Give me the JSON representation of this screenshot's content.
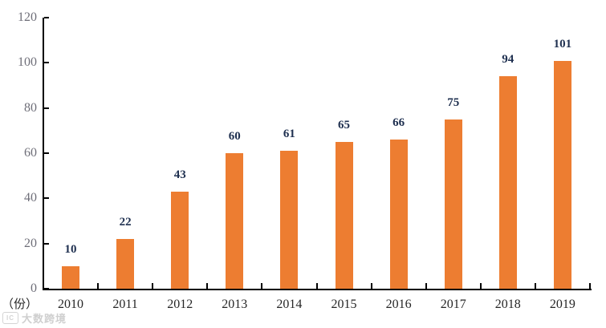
{
  "watermark": {
    "icon": "ic-photo-logo-icon",
    "text": "大数跨境"
  },
  "chart_data": {
    "type": "bar",
    "title": "",
    "categories": [
      "2010",
      "2011",
      "2012",
      "2013",
      "2014",
      "2015",
      "2016",
      "2017",
      "2018",
      "2019"
    ],
    "values": [
      10,
      22,
      43,
      60,
      61,
      65,
      66,
      75,
      94,
      101
    ],
    "unit_label": "（份）",
    "xlabel": "",
    "ylabel": "（份）",
    "ylim": [
      0,
      120
    ],
    "yticks": [
      0,
      20,
      40,
      60,
      80,
      100,
      120
    ],
    "grid": false,
    "legend": "none",
    "data_labels": true,
    "bar_color": "#ED7D31",
    "value_label_color": "#1F3050",
    "y_tick_label_color": "#6E6E78",
    "x_tick_label_color": "#262626",
    "axis_color": "#000000"
  }
}
